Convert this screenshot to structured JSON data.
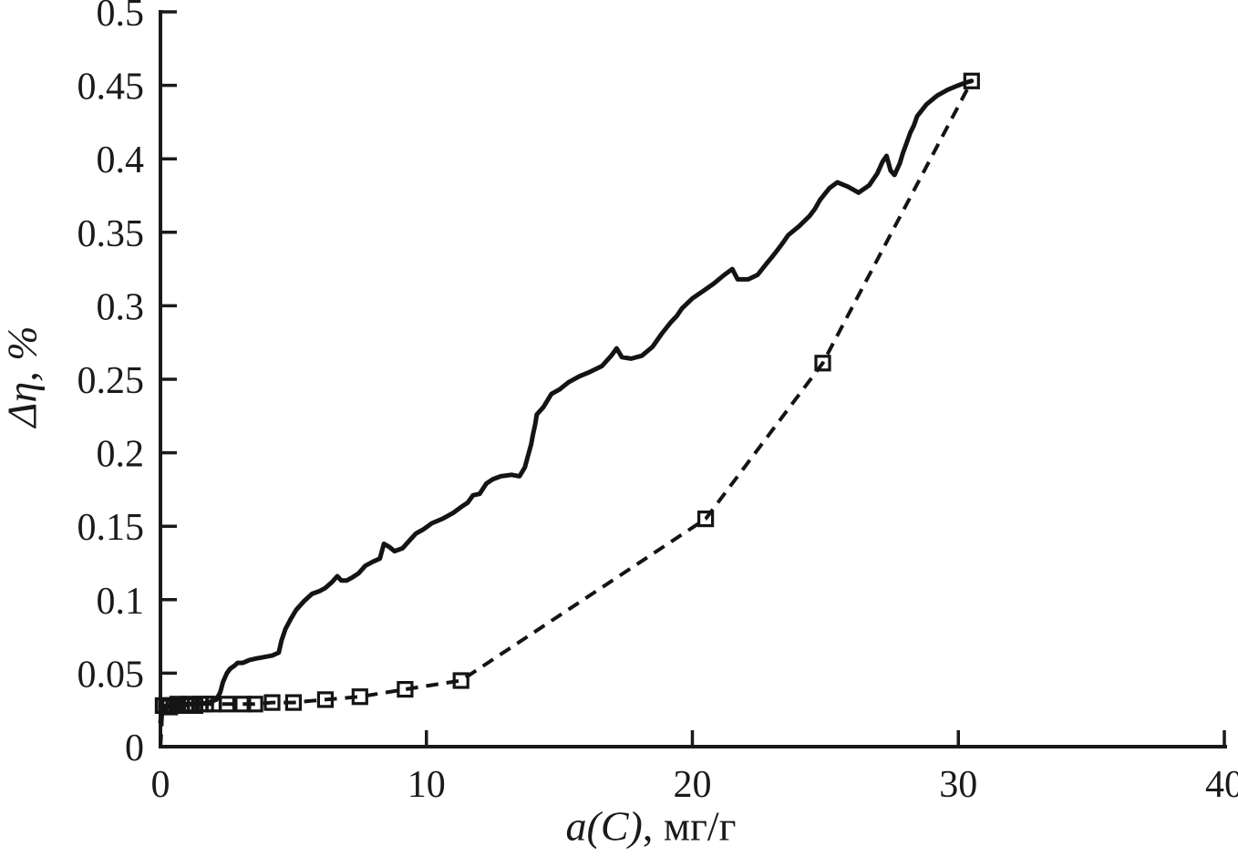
{
  "figure": {
    "background": "#ffffff",
    "ink_color": "#1a1a1a"
  },
  "chart_data": {
    "type": "line",
    "title": "",
    "xlabel_math": "a(C)",
    "xlabel_unit": ", мг/г",
    "ylabel_math": "Δη",
    "ylabel_unit": ", %",
    "xlim": [
      0,
      40
    ],
    "ylim": [
      0,
      0.5
    ],
    "xticks": [
      0,
      10,
      20,
      30,
      40
    ],
    "xtick_labels": [
      "0",
      "10",
      "20",
      "30",
      "40"
    ],
    "yticks": [
      0,
      0.05,
      0.1,
      0.15,
      0.2,
      0.25,
      0.3,
      0.35,
      0.4,
      0.45,
      0.5
    ],
    "ytick_labels": [
      "0",
      "0.05",
      "0.1",
      "0.15",
      "0.2",
      "0.25",
      "0.3",
      "0.35",
      "0.4",
      "0.45",
      "0.5"
    ],
    "grid": false,
    "legend": "none",
    "series": [
      {
        "name": "continuous-noisy-curve",
        "style": "solid",
        "marker": "none",
        "color": "#141414",
        "stroke_width": 5,
        "points": [
          [
            0,
            0.017
          ],
          [
            0.08,
            0.024
          ],
          [
            0.25,
            0.028
          ],
          [
            0.6,
            0.028
          ],
          [
            1.0,
            0.029
          ],
          [
            1.4,
            0.029
          ],
          [
            1.8,
            0.03
          ],
          [
            2.1,
            0.032
          ],
          [
            2.25,
            0.037
          ],
          [
            2.35,
            0.044
          ],
          [
            2.5,
            0.05
          ],
          [
            2.62,
            0.053
          ],
          [
            2.78,
            0.055
          ],
          [
            2.9,
            0.057
          ],
          [
            3.1,
            0.057
          ],
          [
            3.35,
            0.059
          ],
          [
            3.6,
            0.06
          ],
          [
            3.9,
            0.061
          ],
          [
            4.2,
            0.062
          ],
          [
            4.45,
            0.064
          ],
          [
            4.55,
            0.072
          ],
          [
            4.7,
            0.08
          ],
          [
            4.9,
            0.087
          ],
          [
            5.1,
            0.093
          ],
          [
            5.4,
            0.099
          ],
          [
            5.7,
            0.104
          ],
          [
            6.0,
            0.106
          ],
          [
            6.2,
            0.108
          ],
          [
            6.45,
            0.112
          ],
          [
            6.65,
            0.116
          ],
          [
            6.8,
            0.113
          ],
          [
            7.0,
            0.113
          ],
          [
            7.2,
            0.115
          ],
          [
            7.45,
            0.118
          ],
          [
            7.7,
            0.123
          ],
          [
            8.0,
            0.126
          ],
          [
            8.25,
            0.128
          ],
          [
            8.4,
            0.138
          ],
          [
            8.6,
            0.136
          ],
          [
            8.8,
            0.133
          ],
          [
            9.1,
            0.135
          ],
          [
            9.35,
            0.14
          ],
          [
            9.6,
            0.145
          ],
          [
            9.9,
            0.148
          ],
          [
            10.2,
            0.152
          ],
          [
            10.6,
            0.155
          ],
          [
            11.0,
            0.159
          ],
          [
            11.3,
            0.163
          ],
          [
            11.55,
            0.166
          ],
          [
            11.75,
            0.171
          ],
          [
            12.0,
            0.172
          ],
          [
            12.25,
            0.179
          ],
          [
            12.5,
            0.182
          ],
          [
            12.8,
            0.184
          ],
          [
            13.2,
            0.185
          ],
          [
            13.5,
            0.184
          ],
          [
            13.7,
            0.19
          ],
          [
            13.85,
            0.2
          ],
          [
            14.0,
            0.212
          ],
          [
            14.15,
            0.226
          ],
          [
            14.4,
            0.231
          ],
          [
            14.7,
            0.24
          ],
          [
            15.0,
            0.243
          ],
          [
            15.35,
            0.248
          ],
          [
            15.75,
            0.252
          ],
          [
            16.15,
            0.255
          ],
          [
            16.6,
            0.259
          ],
          [
            16.95,
            0.266
          ],
          [
            17.15,
            0.271
          ],
          [
            17.35,
            0.265
          ],
          [
            17.7,
            0.264
          ],
          [
            18.1,
            0.266
          ],
          [
            18.5,
            0.272
          ],
          [
            18.85,
            0.281
          ],
          [
            19.2,
            0.289
          ],
          [
            19.6,
            0.298
          ],
          [
            20.0,
            0.305
          ],
          [
            20.4,
            0.31
          ],
          [
            20.8,
            0.315
          ],
          [
            21.2,
            0.321
          ],
          [
            21.5,
            0.325
          ],
          [
            21.7,
            0.318
          ],
          [
            22.1,
            0.318
          ],
          [
            22.45,
            0.321
          ],
          [
            22.8,
            0.329
          ],
          [
            23.2,
            0.338
          ],
          [
            23.6,
            0.348
          ],
          [
            24.0,
            0.354
          ],
          [
            24.4,
            0.361
          ],
          [
            24.8,
            0.372
          ],
          [
            25.15,
            0.38
          ],
          [
            25.45,
            0.384
          ],
          [
            25.85,
            0.381
          ],
          [
            26.25,
            0.377
          ],
          [
            26.65,
            0.382
          ],
          [
            26.95,
            0.39
          ],
          [
            27.15,
            0.398
          ],
          [
            27.3,
            0.402
          ],
          [
            27.45,
            0.392
          ],
          [
            27.6,
            0.389
          ],
          [
            27.8,
            0.397
          ],
          [
            28.0,
            0.408
          ],
          [
            28.2,
            0.418
          ],
          [
            28.45,
            0.429
          ],
          [
            28.8,
            0.437
          ],
          [
            29.2,
            0.443
          ],
          [
            29.6,
            0.447
          ],
          [
            30.0,
            0.45
          ],
          [
            30.3,
            0.452
          ],
          [
            30.5,
            0.453
          ]
        ]
      },
      {
        "name": "dashed-curve-with-square-markers",
        "style": "dashed",
        "marker": "open-square",
        "color": "#141414",
        "stroke_width": 4,
        "dash_pattern": [
          13.5,
          9
        ],
        "marker_size": 15,
        "marker_stroke": 3.2,
        "line_points": [
          [
            0,
            0
          ],
          [
            0.04,
            0.012
          ],
          [
            0.08,
            0.028
          ],
          [
            0.1,
            0.028
          ],
          [
            0.22,
            0.028
          ],
          [
            0.35,
            0.027
          ],
          [
            0.5,
            0.028
          ],
          [
            0.65,
            0.029
          ],
          [
            0.8,
            0.028
          ],
          [
            0.95,
            0.028
          ],
          [
            1.1,
            0.029
          ],
          [
            1.3,
            0.028
          ],
          [
            1.5,
            0.029
          ],
          [
            1.7,
            0.029
          ],
          [
            2.0,
            0.029
          ],
          [
            2.5,
            0.029
          ],
          [
            3.1,
            0.029
          ],
          [
            3.55,
            0.029
          ],
          [
            4.2,
            0.03
          ],
          [
            5.0,
            0.03
          ],
          [
            6.2,
            0.032
          ],
          [
            7.5,
            0.034
          ],
          [
            9.2,
            0.039
          ],
          [
            11.3,
            0.045
          ],
          [
            20.5,
            0.155
          ],
          [
            24.9,
            0.261
          ],
          [
            30.5,
            0.453
          ]
        ],
        "marker_points": [
          [
            0.1,
            0.028
          ],
          [
            0.22,
            0.028
          ],
          [
            0.35,
            0.027
          ],
          [
            0.5,
            0.028
          ],
          [
            0.65,
            0.029
          ],
          [
            0.8,
            0.028
          ],
          [
            0.95,
            0.028
          ],
          [
            1.1,
            0.029
          ],
          [
            1.3,
            0.028
          ],
          [
            1.5,
            0.029
          ],
          [
            1.7,
            0.029
          ],
          [
            2.0,
            0.029
          ],
          [
            2.5,
            0.029
          ],
          [
            3.1,
            0.029
          ],
          [
            3.55,
            0.029
          ],
          [
            4.2,
            0.03
          ],
          [
            5.0,
            0.03
          ],
          [
            6.2,
            0.032
          ],
          [
            7.5,
            0.034
          ],
          [
            9.2,
            0.039
          ],
          [
            11.3,
            0.045
          ],
          [
            20.5,
            0.155
          ],
          [
            24.9,
            0.261
          ],
          [
            30.5,
            0.453
          ]
        ]
      }
    ]
  }
}
